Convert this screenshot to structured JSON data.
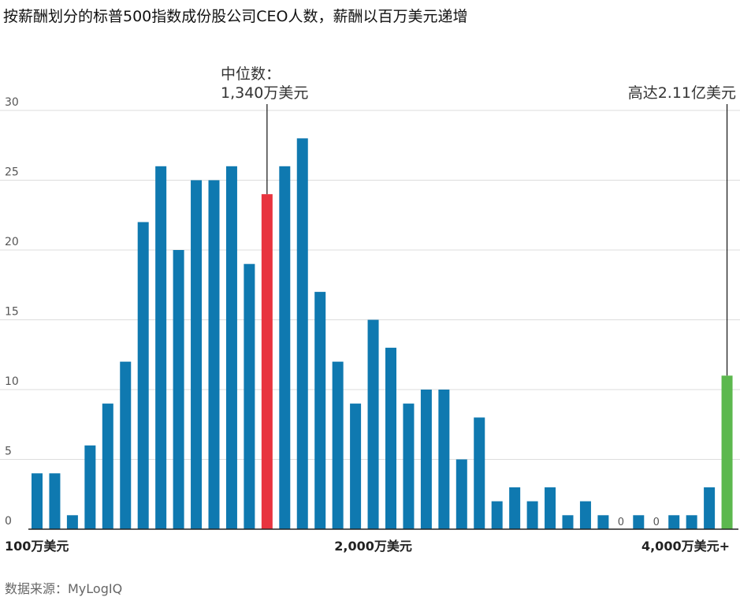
{
  "title": "按薪酬划分的标普500指数成份股公司CEO人数，薪酬以百万美元递增",
  "source": "数据来源：MyLogIQ",
  "colors": {
    "bar": "#0f79b0",
    "median": "#e8343f",
    "max": "#5cb84e",
    "grid": "#dddddd",
    "axis": "#222222"
  },
  "chart_data": {
    "type": "bar",
    "title": "按薪酬划分的标普500指数成份股公司CEO人数，薪酬以百万美元递增",
    "values": [
      4,
      4,
      1,
      6,
      9,
      12,
      22,
      26,
      20,
      25,
      25,
      26,
      19,
      24,
      26,
      28,
      17,
      12,
      9,
      15,
      13,
      9,
      10,
      10,
      5,
      8,
      2,
      3,
      2,
      3,
      1,
      2,
      1,
      0,
      1,
      0,
      1,
      1,
      3,
      11
    ],
    "highlight": {
      "median_index": 13,
      "max_index": 39
    },
    "x_tick_labels": [
      {
        "index": 0,
        "label": "100万美元"
      },
      {
        "index": 19,
        "label": "2,000万美元"
      },
      {
        "index": 39,
        "label": "4,000万美元+"
      }
    ],
    "yticks": [
      0,
      5,
      10,
      15,
      20,
      25,
      30
    ],
    "ylim": [
      0,
      30
    ],
    "grid": true,
    "annotations": [
      {
        "index": 13,
        "lines": [
          "中位数：",
          "1,340万美元"
        ]
      },
      {
        "index": 39,
        "lines": [
          "高达2.11亿美元"
        ]
      }
    ],
    "zero_labels": [
      "0",
      "0"
    ]
  }
}
